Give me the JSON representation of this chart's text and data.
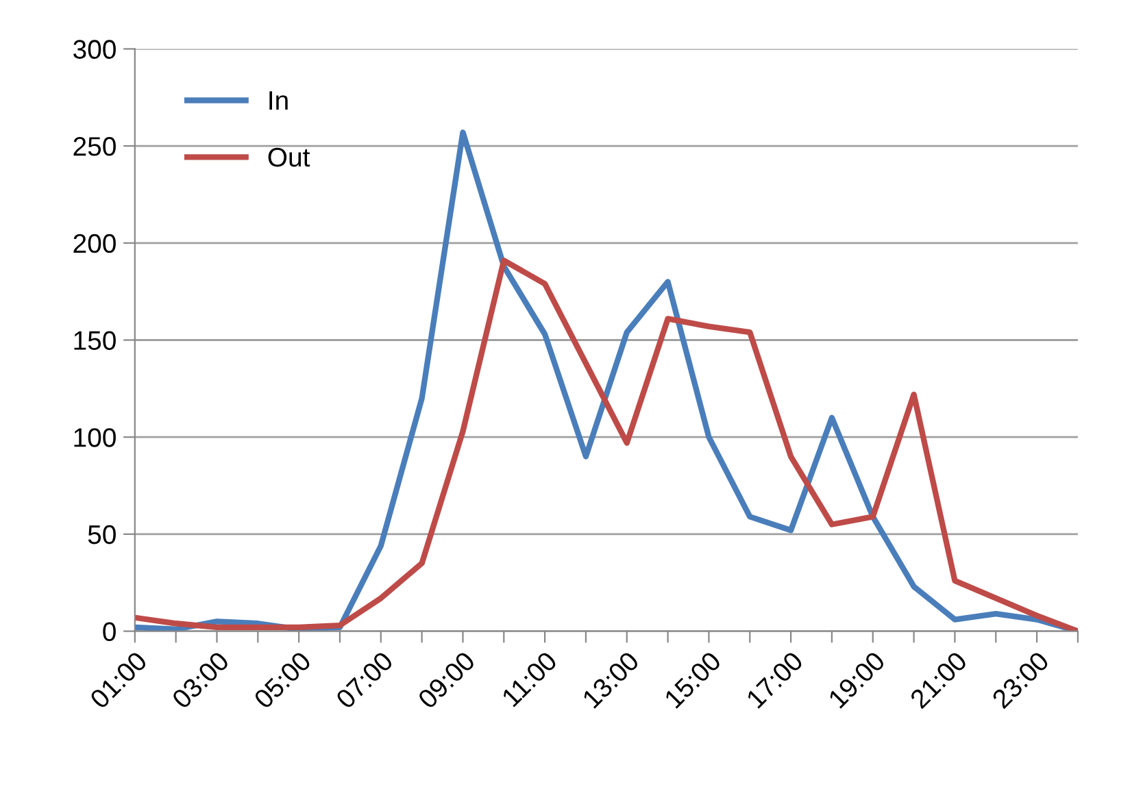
{
  "chart_data": {
    "type": "line",
    "categories": [
      "01:00",
      null,
      "03:00",
      null,
      "05:00",
      null,
      "07:00",
      null,
      "09:00",
      null,
      "11:00",
      null,
      "13:00",
      null,
      "15:00",
      null,
      "17:00",
      null,
      "19:00",
      null,
      "21:00",
      null,
      "23:00",
      null
    ],
    "series": [
      {
        "name": "In",
        "color": "#4a7ebb",
        "values": [
          2,
          1,
          5,
          4,
          1,
          2,
          44,
          120,
          257,
          188,
          153,
          90,
          154,
          180,
          100,
          59,
          52,
          110,
          59,
          23,
          6,
          9,
          6,
          0
        ]
      },
      {
        "name": "Out",
        "color": "#be4b48",
        "values": [
          7,
          4,
          2,
          2,
          2,
          3,
          17,
          35,
          103,
          191,
          179,
          138,
          97,
          161,
          157,
          154,
          90,
          55,
          59,
          122,
          26,
          17,
          8,
          0
        ]
      }
    ],
    "ylim": [
      0,
      300
    ],
    "yticks": [
      0,
      50,
      100,
      150,
      200,
      250,
      300
    ],
    "grid": "y",
    "legend": "top left",
    "marker": "none",
    "line_style": "solid"
  }
}
